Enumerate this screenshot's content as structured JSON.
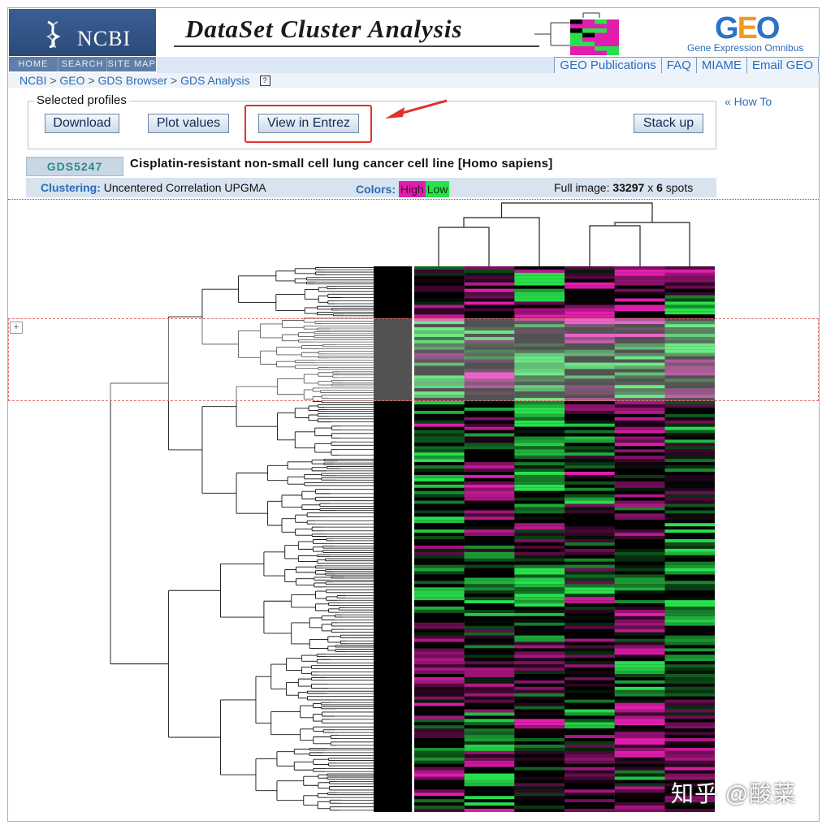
{
  "header": {
    "ncbi_logo": "NCBI",
    "ncbi_nav": [
      "HOME",
      "SEARCH",
      "SITE MAP"
    ],
    "banner_title": "DataSet Cluster Analysis",
    "geo_logo": "GEO",
    "geo_subtitle": "Gene Expression Omnibus",
    "top_links": [
      "GEO Publications",
      "FAQ",
      "MIAME",
      "Email GEO"
    ]
  },
  "breadcrumb": [
    "NCBI",
    "GEO",
    "GDS Browser",
    "GDS Analysis"
  ],
  "breadcrumb_sep": ">",
  "help_icon": "?",
  "profiles": {
    "legend": "Selected profiles",
    "buttons": [
      "Download",
      "Plot values",
      "View in Entrez",
      "Stack up"
    ]
  },
  "how_to": "« How To",
  "dataset": {
    "id": "GDS5247",
    "title": "Cisplatin-resistant non-small cell lung cancer cell line [Homo sapiens]",
    "clustering_label": "Clustering:",
    "clustering_value": "Uncentered Correlation UPGMA",
    "colors_label": "Colors:",
    "color_high": "High",
    "color_low": "Low",
    "full_image_label": "Full image:",
    "full_image_rows": "33297",
    "full_image_x": "x",
    "full_image_cols": "6",
    "full_image_unit": "spots"
  },
  "selection_plus": "+",
  "watermark": "知乎 @酸菜",
  "colors": {
    "high": "#e21dae",
    "low": "#28e04c",
    "annotation_red": "#e0322e",
    "link_blue": "#2a6cb8"
  },
  "icons": [
    "ncbi-helix-icon",
    "help-icon",
    "red-arrow-icon",
    "plus-icon"
  ]
}
